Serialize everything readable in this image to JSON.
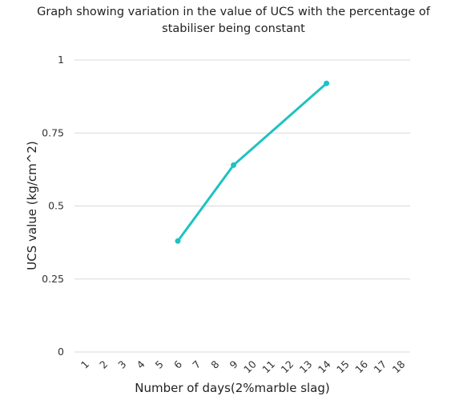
{
  "chart_data": {
    "type": "line",
    "title_lines": [
      "Graph showing variation in the value of UCS with the percentage of",
      "stabiliser being constant"
    ],
    "xlabel": "Number of days(2%marble slag)",
    "ylabel": "UCS value (kg/cm^2)",
    "categories": [
      "1",
      "2",
      "3",
      "4",
      "5",
      "6",
      "7",
      "8",
      "9",
      "10",
      "11",
      "12",
      "13",
      "14",
      "15",
      "16",
      "17",
      "18"
    ],
    "series": [
      {
        "points": [
          {
            "x": "6",
            "y": 0.38
          },
          {
            "x": "9",
            "y": 0.64
          },
          {
            "x": "14",
            "y": 0.92
          }
        ]
      }
    ],
    "ylim": [
      0,
      1
    ],
    "yticks": [
      {
        "value": 0,
        "label": "0"
      },
      {
        "value": 0.25,
        "label": "0.25"
      },
      {
        "value": 0.5,
        "label": "0.5"
      },
      {
        "value": 0.75,
        "label": "0.75"
      },
      {
        "value": 1,
        "label": "1"
      }
    ],
    "grid": true,
    "line_color": "#1ec2c2",
    "grid_color": "#d9d9d9"
  }
}
